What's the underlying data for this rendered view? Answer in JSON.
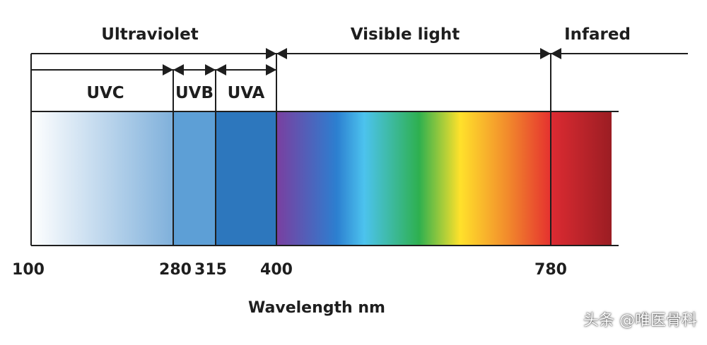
{
  "region_labels": {
    "ultraviolet": "Ultraviolet",
    "visible_light": "Visible light",
    "infrared": "Infared"
  },
  "band_labels": {
    "uvc": "UVC",
    "uvb": "UVB",
    "uva": "UVA"
  },
  "tick_labels": [
    "100",
    "280",
    "315",
    "400",
    "780"
  ],
  "axis_label": "Wavelength nm",
  "watermark": "头条 @唯医骨科",
  "colors": {
    "line": "#1e1e1e",
    "text": "#1e1e1e",
    "uvc_fade_start": "#ffffff",
    "uvc_fade_end": "#7fb0db",
    "uvb": "#5d9fd6",
    "uva": "#2d77bd",
    "violet": "#7a3fa0",
    "blue": "#2c7fd0",
    "cyan": "#4cc3ee",
    "green": "#2eb04f",
    "yellow": "#ffe12b",
    "orange": "#f28c2c",
    "red": "#e5312f",
    "infrared_start": "#dd2b32",
    "infrared_end": "#9b1d23"
  }
}
